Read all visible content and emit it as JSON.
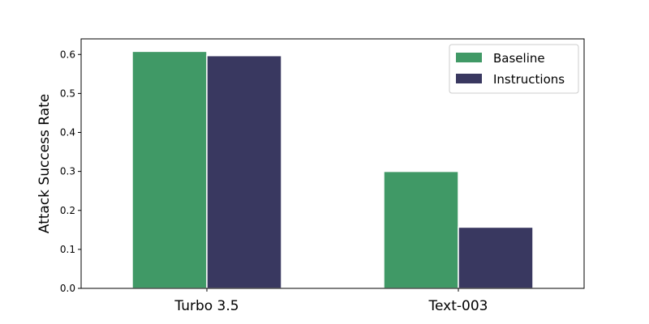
{
  "chart_data": {
    "type": "bar",
    "title": "",
    "xlabel": "",
    "ylabel": "Attack Success Rate",
    "categories": [
      "Turbo 3.5",
      "Text-003"
    ],
    "series": [
      {
        "name": "Baseline",
        "values": [
          0.608,
          0.3
        ],
        "color": "#409966"
      },
      {
        "name": "Instructions",
        "values": [
          0.597,
          0.157
        ],
        "color": "#393860"
      }
    ],
    "yticks": [
      "0.0",
      "0.1",
      "0.2",
      "0.3",
      "0.4",
      "0.5",
      "0.6"
    ],
    "ylim": [
      0,
      0.64
    ],
    "grid": false,
    "legend_position": "top-right"
  }
}
